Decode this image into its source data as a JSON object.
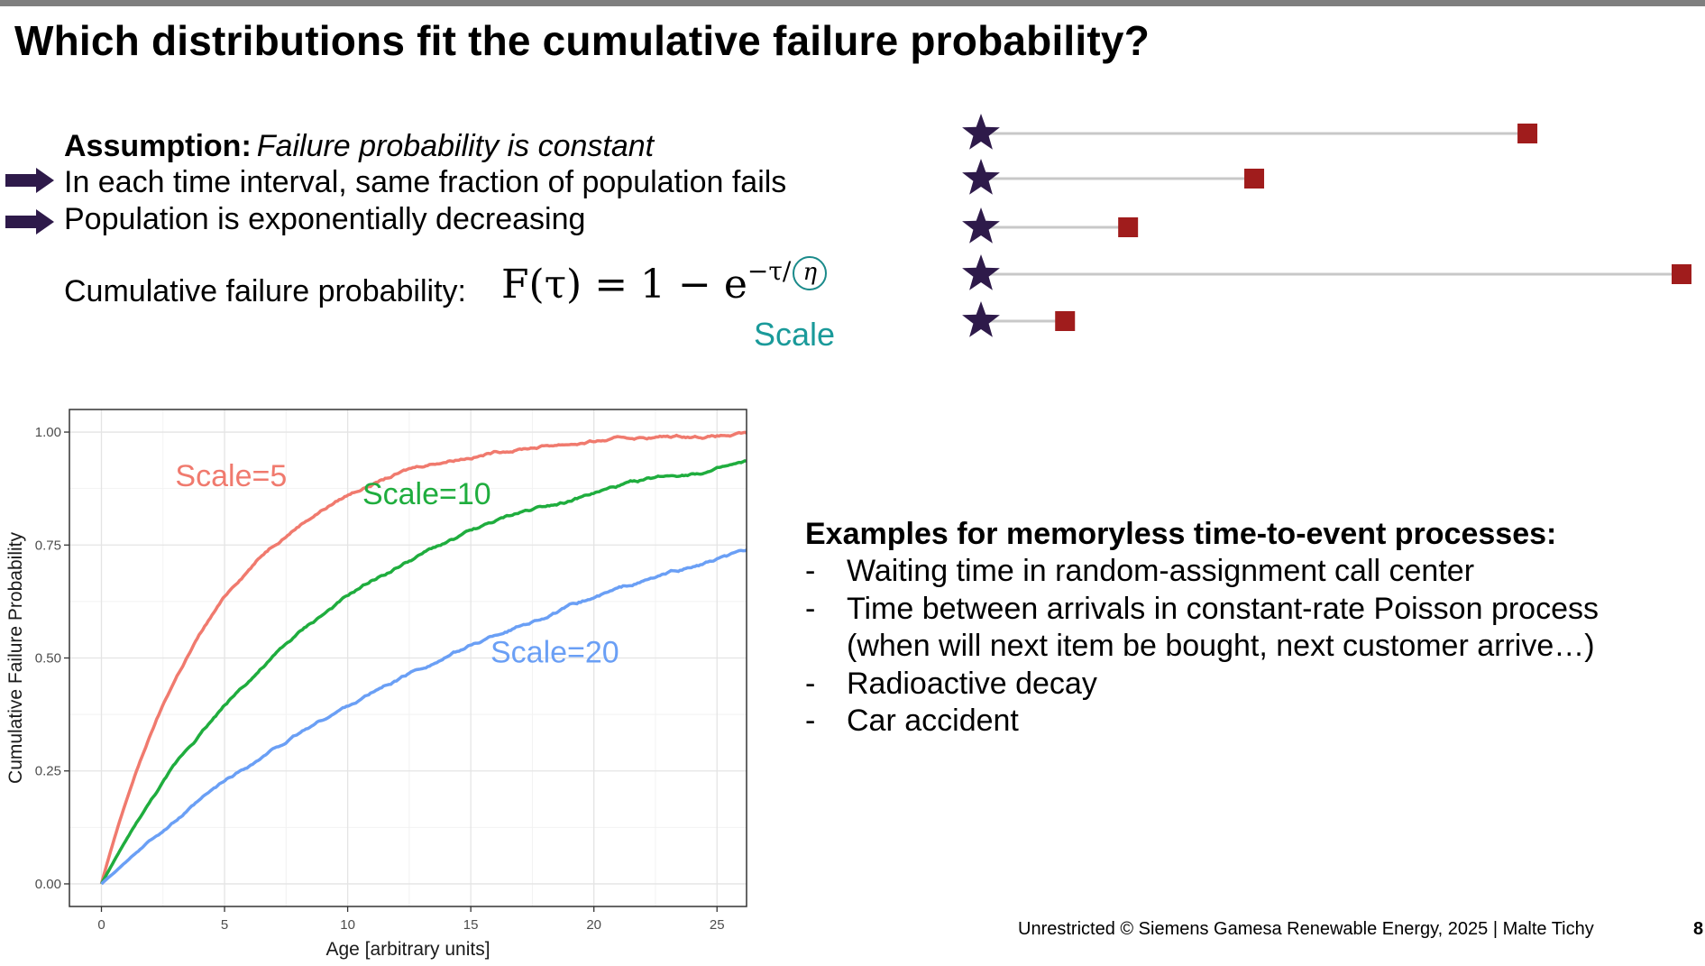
{
  "title": "Which distributions fit the cumulative failure probability?",
  "assumption": {
    "label": "Assumption:",
    "text": "Failure probability is constant"
  },
  "points": [
    "In each time interval, same fraction of population fails",
    "Population is exponentially decreasing"
  ],
  "cumulative_label": "Cumulative failure probability:",
  "formula": {
    "lhs": "F(τ) = 1 − e",
    "exponent": "−τ/",
    "eta": "η"
  },
  "scale_annotation": "Scale",
  "colors": {
    "accent_arrow": "#2e1a4a",
    "star": "#2e1a4a",
    "square": "#a01c1c",
    "teal": "#1a9a9a"
  },
  "lollipop_rows": [
    {
      "length": 0.78
    },
    {
      "length": 0.39
    },
    {
      "length": 0.21
    },
    {
      "length": 1.0
    },
    {
      "length": 0.12
    }
  ],
  "chart_data": {
    "type": "line",
    "xlabel": "Age [arbitrary units]",
    "ylabel": "Cumulative Failure Probability",
    "xlim": [
      -1.3,
      26.2
    ],
    "ylim": [
      -0.05,
      1.05
    ],
    "x_ticks": [
      0,
      5,
      10,
      15,
      20,
      25
    ],
    "y_ticks": [
      0.0,
      0.25,
      0.5,
      0.75,
      1.0
    ],
    "y_tick_labels": [
      "0.00",
      "0.25",
      "0.50",
      "0.75",
      "1.00"
    ],
    "grid": true,
    "series": [
      {
        "name": "Scale=5",
        "scale": 5,
        "color": "#f07a6e",
        "label_x": 3.0,
        "label_y": 0.88
      },
      {
        "name": "Scale=10",
        "scale": 10,
        "color": "#1fad3e",
        "label_x": 10.6,
        "label_y": 0.84
      },
      {
        "name": "Scale=20",
        "scale": 20,
        "color": "#6a9ff5",
        "label_x": 15.8,
        "label_y": 0.49
      }
    ]
  },
  "examples": {
    "heading": "Examples for memoryless time-to-event processes:",
    "dash": "-",
    "items": [
      "Waiting time in random-assignment call center",
      "Time between arrivals in constant-rate Poisson process",
      "(when will next item be bought, next customer arrive…)",
      "Radioactive decay",
      "Car accident"
    ]
  },
  "footer": "Unrestricted © Siemens Gamesa Renewable Energy, 2025 | Malte Tichy",
  "page_number": "8"
}
